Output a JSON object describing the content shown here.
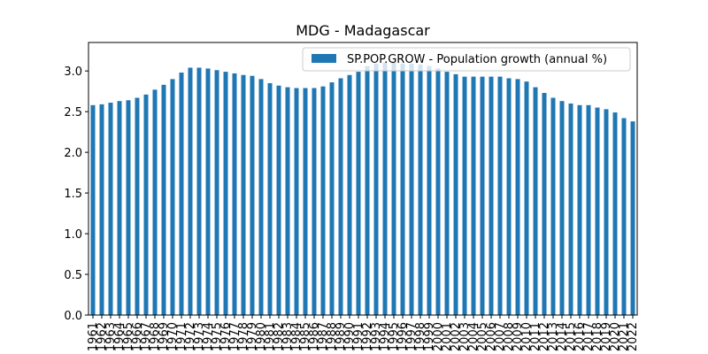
{
  "chart_data": {
    "type": "bar",
    "title": "MDG - Madagascar",
    "xlabel": "",
    "ylabel": "",
    "ylim": [
      0,
      3.35
    ],
    "yticks": [
      0.0,
      0.5,
      1.0,
      1.5,
      2.0,
      2.5,
      3.0
    ],
    "ytick_labels": [
      "0.0",
      "0.5",
      "1.0",
      "1.5",
      "2.0",
      "2.5",
      "3.0"
    ],
    "grid": false,
    "legend_position": "top-right",
    "bar_color": "#1f77b4",
    "categories": [
      "1961",
      "1962",
      "1963",
      "1964",
      "1965",
      "1966",
      "1967",
      "1968",
      "1969",
      "1970",
      "1971",
      "1972",
      "1973",
      "1974",
      "1975",
      "1976",
      "1977",
      "1978",
      "1979",
      "1980",
      "1981",
      "1982",
      "1983",
      "1984",
      "1985",
      "1986",
      "1987",
      "1988",
      "1989",
      "1990",
      "1991",
      "1992",
      "1993",
      "1994",
      "1995",
      "1996",
      "1997",
      "1998",
      "1999",
      "2000",
      "2001",
      "2002",
      "2003",
      "2004",
      "2005",
      "2006",
      "2007",
      "2008",
      "2009",
      "2010",
      "2011",
      "2012",
      "2013",
      "2014",
      "2015",
      "2016",
      "2017",
      "2018",
      "2019",
      "2020",
      "2021",
      "2022"
    ],
    "series": [
      {
        "name": "SP.POP.GROW - Population growth (annual %)",
        "values": [
          2.58,
          2.59,
          2.61,
          2.63,
          2.64,
          2.67,
          2.71,
          2.77,
          2.83,
          2.9,
          2.98,
          3.04,
          3.04,
          3.03,
          3.01,
          2.99,
          2.97,
          2.95,
          2.94,
          2.9,
          2.85,
          2.82,
          2.8,
          2.79,
          2.79,
          2.79,
          2.81,
          2.86,
          2.91,
          2.95,
          2.99,
          3.06,
          3.09,
          3.1,
          3.1,
          3.09,
          3.09,
          3.08,
          3.06,
          3.03,
          2.99,
          2.96,
          2.93,
          2.93,
          2.93,
          2.93,
          2.93,
          2.91,
          2.9,
          2.87,
          2.8,
          2.73,
          2.67,
          2.63,
          2.6,
          2.58,
          2.58,
          2.55,
          2.53,
          2.49,
          2.42,
          2.38
        ]
      }
    ]
  }
}
